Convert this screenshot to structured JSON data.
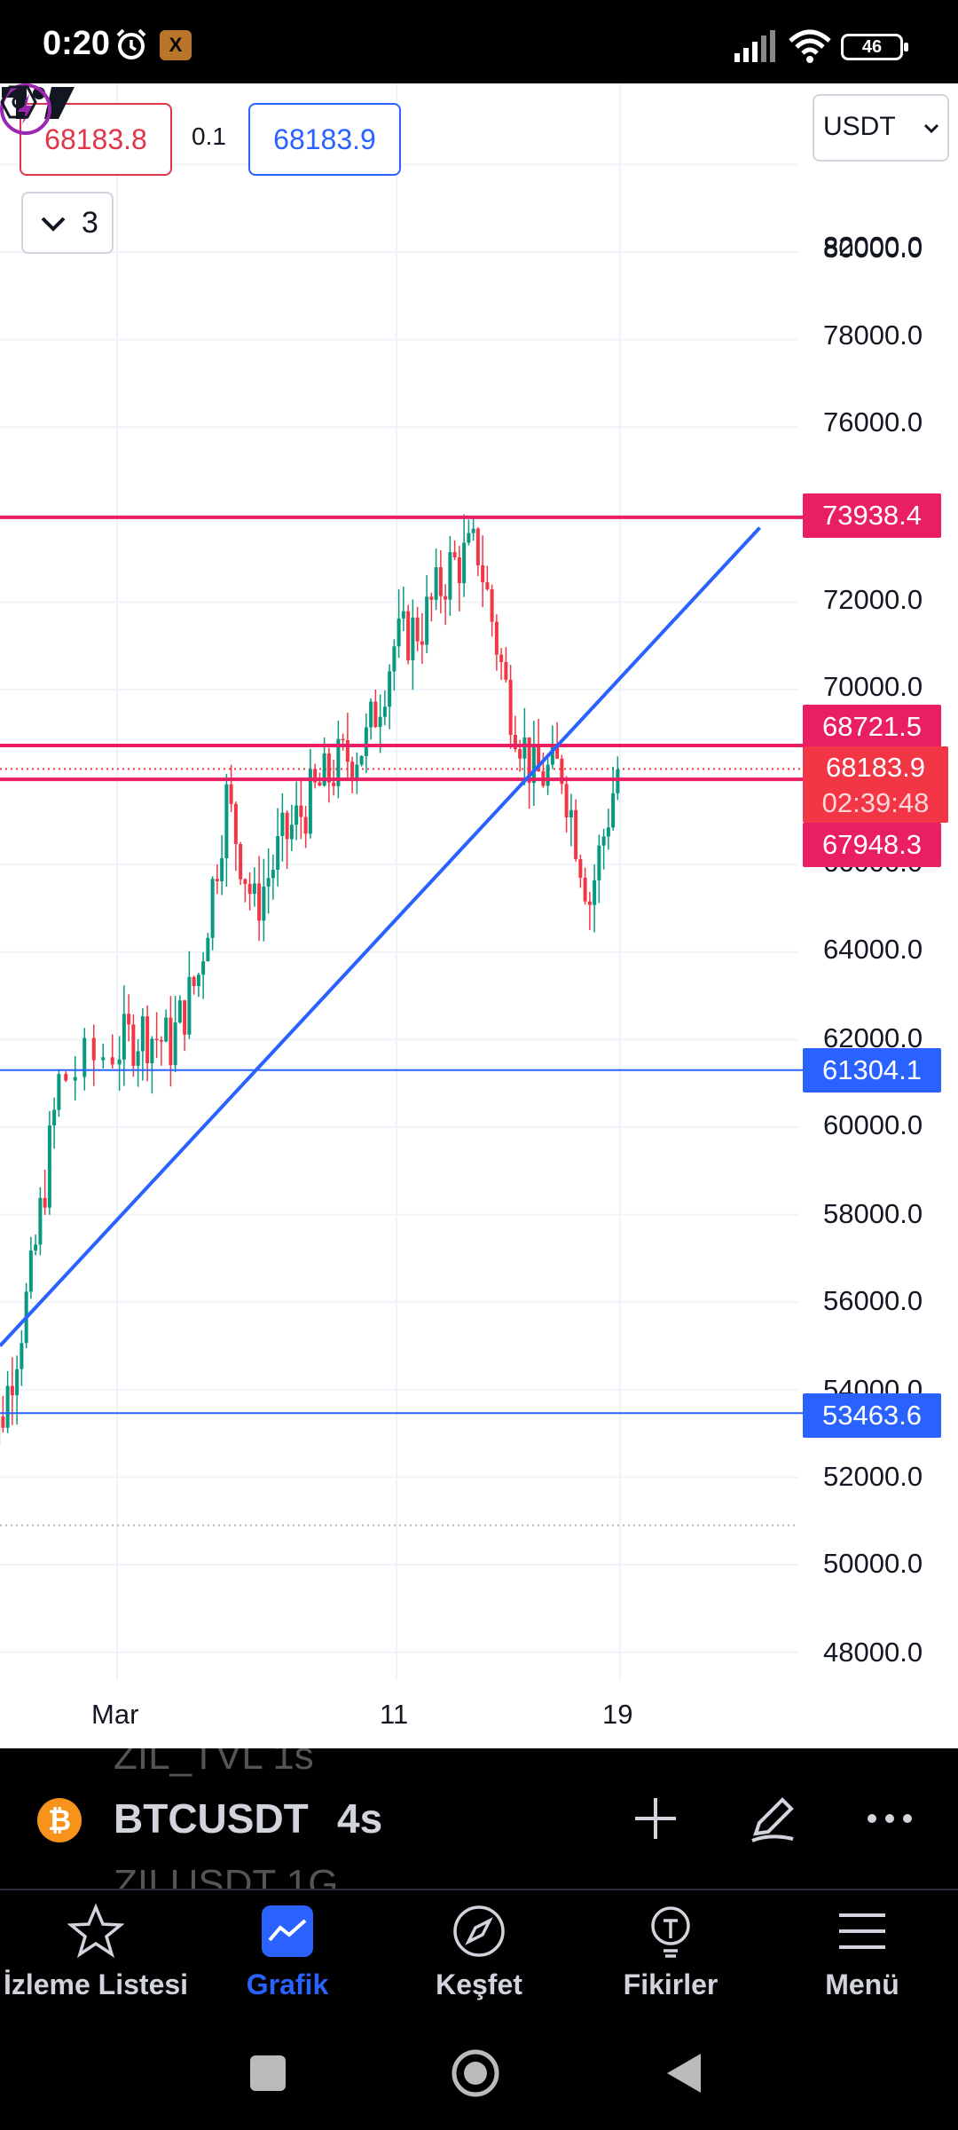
{
  "status_bar": {
    "time": "0:20",
    "battery": "46",
    "icons": [
      "alarm-icon",
      "app-notification-icon",
      "signal-icon",
      "wifi-icon",
      "battery-icon"
    ]
  },
  "order_panel": {
    "bid_price": "68183.8",
    "spread": "0.1",
    "ask_price": "68183.9",
    "collapsed_count": "3"
  },
  "currency_select": {
    "value": "USDT"
  },
  "chart_data": {
    "type": "candlestick",
    "symbol": "BTCUSDT",
    "interval": "4s",
    "y_ticks": [
      "82000.0",
      "80000.0",
      "78000.0",
      "76000.0",
      "72000.0",
      "70000.0",
      "66000.0",
      "64000.0",
      "62000.0",
      "60000.0",
      "58000.0",
      "56000.0",
      "54000.0",
      "52000.0",
      "50000.0",
      "48000.0"
    ],
    "x_ticks": [
      "Mar",
      "11",
      "19"
    ],
    "ylim": [
      47500,
      82500
    ],
    "horizontal_levels": [
      {
        "label": "73938.4",
        "value": 73938.4,
        "color": "#e91e63"
      },
      {
        "label": "68721.5",
        "value": 68721.5,
        "color": "#e91e63"
      },
      {
        "label": "67948.3",
        "value": 67948.3,
        "color": "#e91e63"
      },
      {
        "label": "61304.1",
        "value": 61304.1,
        "color": "#2962ff"
      },
      {
        "label": "53463.6",
        "value": 53463.6,
        "color": "#2962ff"
      }
    ],
    "current_price": {
      "price": "68183.9",
      "countdown": "02:39:48"
    },
    "high_marker": 73938.4,
    "low_marker": 50900,
    "trendline": [
      {
        "x": "Feb 26",
        "y": 55000
      },
      {
        "x": "Mar 24",
        "y": 73700
      }
    ],
    "close_path": [
      [
        "Feb 25",
        51500
      ],
      [
        "Feb 26",
        53500
      ],
      [
        "Feb 27",
        56500
      ],
      [
        "Feb 28",
        61000
      ],
      [
        "Mar 1",
        61800
      ],
      [
        "Mar 2",
        62200
      ],
      [
        "Mar 3",
        61900
      ],
      [
        "Mar 4",
        63500
      ],
      [
        "Mar 5",
        67500
      ],
      [
        "Mar 6",
        65000
      ],
      [
        "Mar 7",
        66500
      ],
      [
        "Mar 8",
        67500
      ],
      [
        "Mar 9",
        68300
      ],
      [
        "Mar 10",
        68800
      ],
      [
        "Mar 11",
        71000
      ],
      [
        "Mar 12",
        71500
      ],
      [
        "Mar 13",
        72800
      ],
      [
        "Mar 14",
        73200
      ],
      [
        "Mar 15",
        70000
      ],
      [
        "Mar 16",
        68000
      ],
      [
        "Mar 17",
        68200
      ],
      [
        "Mar 18",
        65200
      ],
      [
        "Mar 19",
        68183.9
      ]
    ]
  },
  "symbol_bar": {
    "symbol": "BTCUSDT",
    "interval": "4s",
    "ghost_above": "ZIL_TVL      1s",
    "ghost_below": "ZILUSDT      1G"
  },
  "bottom_nav": [
    {
      "label": "İzleme Listesi",
      "icon": "star-icon"
    },
    {
      "label": "Grafik",
      "icon": "chart-icon"
    },
    {
      "label": "Keşfet",
      "icon": "compass-icon"
    },
    {
      "label": "Fikirler",
      "icon": "lightbulb-icon"
    },
    {
      "label": "Menü",
      "icon": "menu-icon"
    }
  ]
}
